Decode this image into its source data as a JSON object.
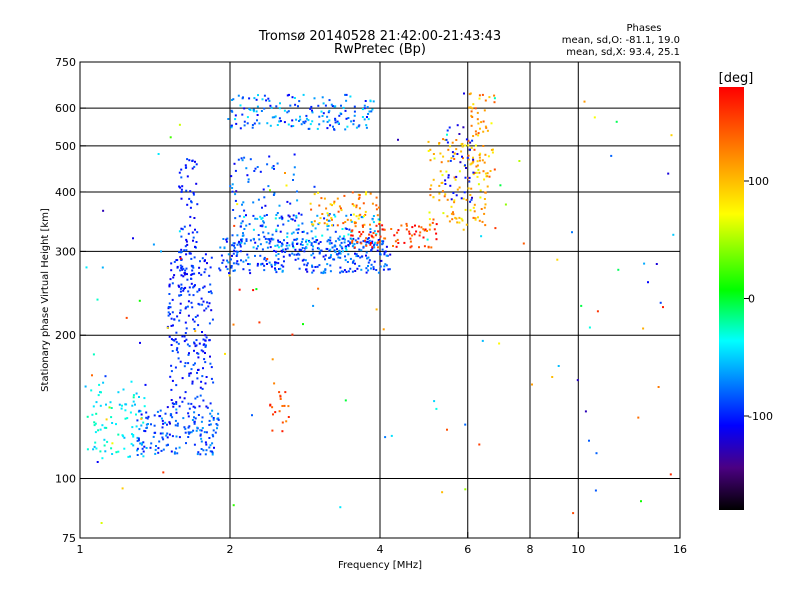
{
  "chart_data": {
    "type": "scatter",
    "title": "Tromsø 20140528 21:42:00-21:43:43",
    "subtitle": "RwPretec (Bp)",
    "xlabel": "Frequency [MHz]",
    "ylabel": "Stationary phase Virtual Height [km]",
    "x_scale": "log",
    "y_scale": "log",
    "xlim": [
      1,
      16
    ],
    "ylim": [
      75,
      750
    ],
    "x_ticks": [
      1,
      2,
      4,
      6,
      8,
      10,
      16
    ],
    "x_tick_labels": [
      "1",
      "2",
      "4",
      "6",
      "8",
      "10",
      "16"
    ],
    "y_ticks": [
      75,
      100,
      200,
      300,
      400,
      500,
      600,
      750
    ],
    "y_tick_labels": [
      "75",
      "100",
      "200",
      "300",
      "400",
      "500",
      "600",
      "750"
    ],
    "grid": true,
    "phases_box": {
      "title": "Phases",
      "line_o": "mean, sd,O: -81.1, 19.0",
      "line_x": "mean, sd,X:  93.4, 25.1"
    },
    "colorbar": {
      "label": "[deg]",
      "range": [
        -180,
        180
      ],
      "ticks": [
        100,
        0,
        -100
      ],
      "tick_labels": [
        "100",
        "0",
        "-100"
      ],
      "colormap": "rainbow"
    },
    "clusters": [
      {
        "region": "low-f-trace",
        "f": [
          1.0,
          1.35
        ],
        "h": [
          110,
          160
        ],
        "phase": [
          -60,
          -20
        ],
        "n": 90
      },
      {
        "region": "lower-band",
        "f": [
          1.3,
          1.9
        ],
        "h": [
          112,
          140
        ],
        "phase": [
          -110,
          -60
        ],
        "n": 160
      },
      {
        "region": "rising-column",
        "f": [
          1.5,
          1.85
        ],
        "h": [
          140,
          300
        ],
        "phase": [
          -115,
          -80
        ],
        "n": 230
      },
      {
        "region": "tall-column",
        "f": [
          1.58,
          1.72
        ],
        "h": [
          250,
          480
        ],
        "phase": [
          -115,
          -80
        ],
        "n": 80
      },
      {
        "region": "F-trace",
        "f": [
          1.9,
          4.2
        ],
        "h": [
          270,
          320
        ],
        "phase": [
          -115,
          -60
        ],
        "n": 330
      },
      {
        "region": "F-trace-upper",
        "f": [
          2.1,
          4.0
        ],
        "h": [
          300,
          360
        ],
        "phase": [
          -100,
          -30
        ],
        "n": 130
      },
      {
        "region": "spread-band",
        "f": [
          2.0,
          2.8
        ],
        "h": [
          300,
          480
        ],
        "phase": [
          -115,
          -60
        ],
        "n": 90
      },
      {
        "region": "upper-F2",
        "f": [
          1.95,
          3.9
        ],
        "h": [
          540,
          640
        ],
        "phase": [
          -110,
          -40
        ],
        "n": 170
      },
      {
        "region": "x-trace",
        "f": [
          2.9,
          4.0
        ],
        "h": [
          340,
          400
        ],
        "phase": [
          70,
          150
        ],
        "n": 70
      },
      {
        "region": "x-trace-knee",
        "f": [
          3.5,
          5.2
        ],
        "h": [
          305,
          345
        ],
        "phase": [
          120,
          200
        ],
        "n": 90
      },
      {
        "region": "cusp",
        "f": [
          5.0,
          6.6
        ],
        "h": [
          340,
          520
        ],
        "phase": [
          60,
          140
        ],
        "n": 120
      },
      {
        "region": "cusp-top",
        "f": [
          6.0,
          6.8
        ],
        "h": [
          420,
          650
        ],
        "phase": [
          70,
          150
        ],
        "n": 60
      },
      {
        "region": "o-cusp",
        "f": [
          5.4,
          6.2
        ],
        "h": [
          380,
          560
        ],
        "phase": [
          -130,
          -90
        ],
        "n": 40
      },
      {
        "region": "small-patch",
        "f": [
          2.4,
          2.65
        ],
        "h": [
          125,
          160
        ],
        "phase": [
          120,
          170
        ],
        "n": 20
      },
      {
        "region": "scatter",
        "f": [
          1.0,
          16.0
        ],
        "h": [
          80,
          650
        ],
        "phase": [
          -130,
          180
        ],
        "n": 120
      }
    ]
  }
}
